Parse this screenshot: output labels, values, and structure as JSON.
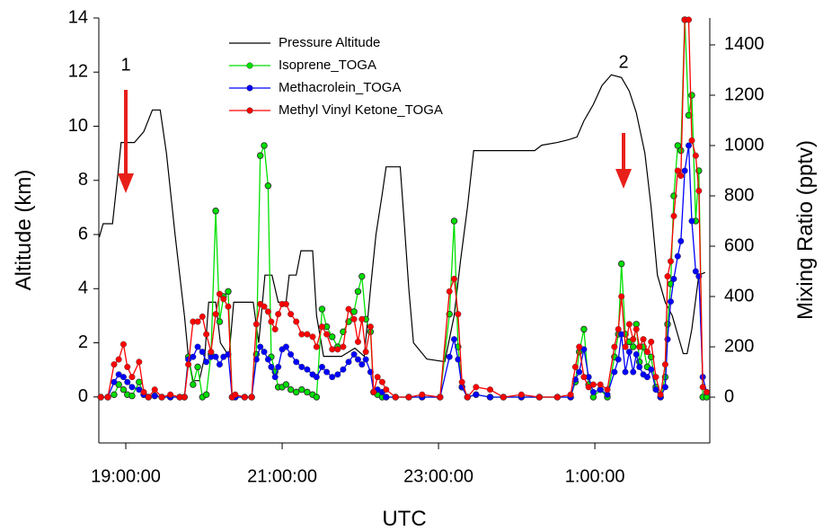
{
  "chart_data": {
    "type": "line",
    "xlabel": "UTC",
    "ylabel": "Altitude (km)",
    "y2label": "Mixing Ratio (pptv)",
    "xlim": [
      18.655,
      26.47
    ],
    "xticks": [
      {
        "value": 19,
        "label": "19:00:00"
      },
      {
        "value": 21,
        "label": "21:00:00"
      },
      {
        "value": 23,
        "label": "23:00:00"
      },
      {
        "value": 25,
        "label": "1:00:00"
      }
    ],
    "ylim": [
      -1.7,
      14
    ],
    "yticks": [
      0,
      2,
      4,
      6,
      8,
      10,
      12,
      14
    ],
    "y2lim": [
      -182,
      1507
    ],
    "y2ticks": [
      0,
      200,
      400,
      600,
      800,
      1000,
      1200,
      1400
    ],
    "legend": "top",
    "annotations": [
      "1",
      "2"
    ],
    "series": [
      {
        "name": "Pressure Altitude",
        "color": "#000000",
        "axis": "y",
        "markers": false,
        "x": [
          18.66,
          18.71,
          18.83,
          18.89,
          18.94,
          19.11,
          19.23,
          19.34,
          19.44,
          19.52,
          19.63,
          19.75,
          19.8,
          19.86,
          19.94,
          20.01,
          20.06,
          20.15,
          20.21,
          20.32,
          20.38,
          20.63,
          20.7,
          20.78,
          20.87,
          20.95,
          21.05,
          21.09,
          21.18,
          21.24,
          21.39,
          21.44,
          21.53,
          21.76,
          21.93,
          22.05,
          22.13,
          22.2,
          22.28,
          22.33,
          22.51,
          22.56,
          22.62,
          22.68,
          22.85,
          23.08,
          23.2,
          23.28,
          23.37,
          23.45,
          24.23,
          24.32,
          24.52,
          24.66,
          24.77,
          24.86,
          24.98,
          25.09,
          25.21,
          25.34,
          25.44,
          25.53,
          25.64,
          25.72,
          25.8,
          25.9,
          25.99,
          26.07,
          26.13,
          26.18,
          26.24,
          26.33,
          26.41
        ],
        "values": [
          5.9,
          6.4,
          6.4,
          8,
          9.4,
          9.4,
          9.8,
          10.6,
          10.6,
          9,
          6,
          3,
          1.5,
          0.6,
          0.6,
          1.5,
          3.5,
          3.5,
          2,
          1.5,
          3.5,
          3.5,
          2,
          4.5,
          4.5,
          3.5,
          3.5,
          4.5,
          4.5,
          5.4,
          5.4,
          3,
          1.5,
          1.5,
          1.8,
          1.5,
          4,
          6,
          7.5,
          8.5,
          8.5,
          6.5,
          4,
          2,
          1.4,
          1.3,
          3,
          5,
          7,
          9.1,
          9.1,
          9.3,
          9.4,
          9.5,
          9.6,
          10.2,
          10.8,
          11.5,
          11.9,
          11.8,
          11.3,
          10.5,
          9,
          7,
          4.5,
          3.5,
          3,
          2.2,
          1.6,
          1.6,
          2.5,
          4.5,
          4.6
        ]
      },
      {
        "name": "Isoprene_TOGA",
        "color": "#00e000",
        "axis": "y2",
        "markers": true,
        "x": [
          18.68,
          18.77,
          18.85,
          18.91,
          18.97,
          19.02,
          19.08,
          19.17,
          19.23,
          19.29,
          19.37,
          19.46,
          19.57,
          19.69,
          19.75,
          19.8,
          19.86,
          19.92,
          19.98,
          20.03,
          20.09,
          20.15,
          20.2,
          20.25,
          20.31,
          20.36,
          20.4,
          20.52,
          20.61,
          20.67,
          20.72,
          20.77,
          20.82,
          20.86,
          20.91,
          20.95,
          21.0,
          21.05,
          21.11,
          21.18,
          21.25,
          21.32,
          21.39,
          21.44,
          21.51,
          21.57,
          21.64,
          21.71,
          21.78,
          21.85,
          21.92,
          21.97,
          22.02,
          22.07,
          22.13,
          22.17,
          22.22,
          22.28,
          22.33,
          22.45,
          22.62,
          22.79,
          23.02,
          23.14,
          23.2,
          23.25,
          23.3,
          23.37,
          23.48,
          23.66,
          23.83,
          24.06,
          24.29,
          24.52,
          24.69,
          24.75,
          24.8,
          24.86,
          24.92,
          24.98,
          25.07,
          25.16,
          25.25,
          25.3,
          25.34,
          25.39,
          25.44,
          25.49,
          25.53,
          25.57,
          25.62,
          25.67,
          25.72,
          25.78,
          25.84,
          25.9,
          25.93,
          25.97,
          26.01,
          26.06,
          26.1,
          26.15,
          26.2,
          26.24,
          26.29,
          26.33,
          26.38,
          26.43
        ],
        "values": [
          0,
          0,
          10,
          50,
          30,
          10,
          5,
          60,
          10,
          0,
          5,
          0,
          0,
          0,
          0,
          160,
          50,
          120,
          0,
          10,
          170,
          740,
          300,
          400,
          420,
          0,
          0,
          0,
          0,
          170,
          960,
          1000,
          840,
          160,
          100,
          40,
          40,
          50,
          30,
          20,
          30,
          20,
          10,
          0,
          350,
          280,
          240,
          200,
          260,
          300,
          340,
          420,
          480,
          310,
          260,
          20,
          10,
          0,
          0,
          0,
          0,
          0,
          0,
          330,
          700,
          200,
          40,
          0,
          10,
          0,
          0,
          0,
          0,
          0,
          0,
          60,
          180,
          270,
          50,
          0,
          30,
          0,
          160,
          250,
          530,
          250,
          220,
          200,
          290,
          140,
          200,
          120,
          160,
          40,
          0,
          80,
          290,
          450,
          800,
          1000,
          980,
          1500,
          1120,
          1200,
          700,
          900,
          0,
          0
        ]
      },
      {
        "name": "Methacrolein_TOGA",
        "color": "#0000ff",
        "axis": "y2",
        "markers": true,
        "x": [
          18.68,
          18.77,
          18.85,
          18.91,
          18.97,
          19.02,
          19.08,
          19.17,
          19.23,
          19.29,
          19.37,
          19.46,
          19.57,
          19.69,
          19.75,
          19.8,
          19.86,
          19.92,
          19.98,
          20.03,
          20.09,
          20.15,
          20.2,
          20.25,
          20.31,
          20.36,
          20.4,
          20.52,
          20.61,
          20.67,
          20.72,
          20.77,
          20.82,
          20.86,
          20.91,
          20.95,
          21.0,
          21.05,
          21.11,
          21.18,
          21.25,
          21.32,
          21.39,
          21.44,
          21.51,
          21.57,
          21.64,
          21.71,
          21.78,
          21.85,
          21.92,
          21.97,
          22.02,
          22.07,
          22.13,
          22.17,
          22.22,
          22.28,
          22.33,
          22.45,
          22.62,
          22.79,
          23.02,
          23.14,
          23.2,
          23.25,
          23.3,
          23.37,
          23.48,
          23.66,
          23.83,
          24.06,
          24.29,
          24.52,
          24.69,
          24.75,
          24.8,
          24.86,
          24.92,
          24.98,
          25.07,
          25.16,
          25.25,
          25.3,
          25.34,
          25.39,
          25.44,
          25.49,
          25.53,
          25.57,
          25.62,
          25.67,
          25.72,
          25.78,
          25.84,
          25.9,
          25.93,
          25.97,
          26.01,
          26.06,
          26.1,
          26.15,
          26.2,
          26.24,
          26.29,
          26.33,
          26.38,
          26.43
        ],
        "values": [
          0,
          0,
          60,
          90,
          80,
          60,
          40,
          30,
          10,
          0,
          5,
          0,
          0,
          0,
          0,
          150,
          160,
          200,
          180,
          140,
          160,
          160,
          130,
          160,
          170,
          0,
          0,
          0,
          0,
          150,
          200,
          180,
          150,
          120,
          80,
          120,
          190,
          200,
          170,
          140,
          120,
          110,
          90,
          80,
          120,
          100,
          80,
          90,
          110,
          140,
          170,
          150,
          130,
          150,
          100,
          20,
          30,
          20,
          0,
          0,
          0,
          0,
          0,
          160,
          230,
          150,
          40,
          0,
          10,
          0,
          0,
          0,
          0,
          0,
          0,
          70,
          100,
          190,
          80,
          20,
          30,
          10,
          100,
          150,
          250,
          100,
          180,
          100,
          170,
          120,
          90,
          80,
          110,
          30,
          0,
          40,
          230,
          380,
          470,
          560,
          620,
          900,
          1000,
          700,
          500,
          480,
          80,
          20
        ]
      },
      {
        "name": "Methyl Vinyl Ketone_TOGA",
        "color": "#ff0000",
        "axis": "y2",
        "markers": true,
        "x": [
          18.68,
          18.77,
          18.85,
          18.91,
          18.97,
          19.02,
          19.08,
          19.17,
          19.23,
          19.29,
          19.37,
          19.46,
          19.57,
          19.69,
          19.75,
          19.8,
          19.86,
          19.92,
          19.98,
          20.03,
          20.09,
          20.15,
          20.2,
          20.25,
          20.31,
          20.36,
          20.4,
          20.52,
          20.61,
          20.67,
          20.72,
          20.77,
          20.82,
          20.86,
          20.91,
          20.95,
          21.0,
          21.05,
          21.11,
          21.18,
          21.25,
          21.32,
          21.39,
          21.44,
          21.51,
          21.57,
          21.64,
          21.71,
          21.78,
          21.85,
          21.92,
          21.97,
          22.02,
          22.07,
          22.13,
          22.17,
          22.22,
          22.28,
          22.33,
          22.45,
          22.62,
          22.79,
          23.02,
          23.14,
          23.2,
          23.25,
          23.3,
          23.37,
          23.48,
          23.66,
          23.83,
          24.06,
          24.29,
          24.52,
          24.69,
          24.75,
          24.8,
          24.86,
          24.92,
          24.98,
          25.07,
          25.16,
          25.25,
          25.3,
          25.34,
          25.39,
          25.44,
          25.49,
          25.53,
          25.57,
          25.62,
          25.67,
          25.72,
          25.78,
          25.84,
          25.9,
          25.93,
          25.97,
          26.01,
          26.06,
          26.1,
          26.15,
          26.2,
          26.24,
          26.29,
          26.33,
          26.38,
          26.43
        ],
        "values": [
          0,
          0,
          130,
          150,
          210,
          120,
          80,
          140,
          20,
          0,
          30,
          0,
          10,
          0,
          0,
          130,
          300,
          300,
          320,
          250,
          180,
          330,
          410,
          390,
          360,
          0,
          10,
          0,
          0,
          290,
          370,
          360,
          340,
          300,
          270,
          330,
          370,
          370,
          330,
          300,
          250,
          250,
          240,
          200,
          280,
          250,
          190,
          190,
          200,
          350,
          310,
          220,
          310,
          180,
          280,
          20,
          80,
          60,
          30,
          0,
          0,
          10,
          0,
          420,
          470,
          330,
          60,
          0,
          40,
          30,
          0,
          10,
          0,
          0,
          10,
          120,
          200,
          80,
          40,
          50,
          50,
          30,
          200,
          270,
          400,
          200,
          290,
          230,
          270,
          200,
          230,
          180,
          220,
          80,
          10,
          130,
          480,
          540,
          720,
          900,
          880,
          1500,
          1500,
          1020,
          960,
          820,
          40,
          20
        ]
      }
    ]
  }
}
